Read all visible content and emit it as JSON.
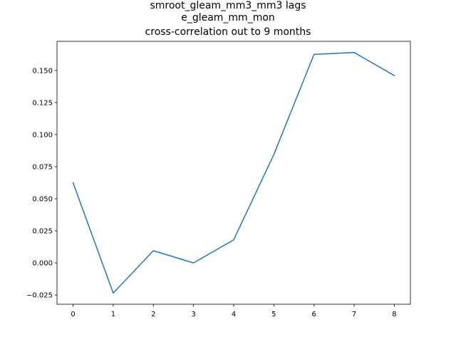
{
  "chart_data": {
    "type": "line",
    "title_lines": [
      "smroot_gleam_mm3_mm3 lags",
      "e_gleam_mm_mon",
      "cross-correlation out to 9 months"
    ],
    "xlabel": "",
    "ylabel": "",
    "x": [
      0,
      1,
      2,
      3,
      4,
      5,
      6,
      7,
      8
    ],
    "series": [
      {
        "values": [
          0.0625,
          -0.0235,
          0.0095,
          0.0,
          0.018,
          0.0845,
          0.1625,
          0.164,
          0.146
        ],
        "color": "#1f77b4"
      }
    ],
    "xlim": [
      -0.4,
      8.4
    ],
    "ylim": [
      -0.0322,
      0.1727
    ],
    "x_ticks": [
      0,
      1,
      2,
      3,
      4,
      5,
      6,
      7,
      8
    ],
    "x_tick_labels": [
      "0",
      "1",
      "2",
      "3",
      "4",
      "5",
      "6",
      "7",
      "8"
    ],
    "y_ticks": [
      -0.025,
      0.0,
      0.025,
      0.05,
      0.075,
      0.1,
      0.125,
      0.15
    ],
    "y_tick_labels": [
      "−0.025",
      "0.000",
      "0.025",
      "0.050",
      "0.075",
      "0.100",
      "0.125",
      "0.150"
    ],
    "grid": false,
    "legend": "none"
  }
}
